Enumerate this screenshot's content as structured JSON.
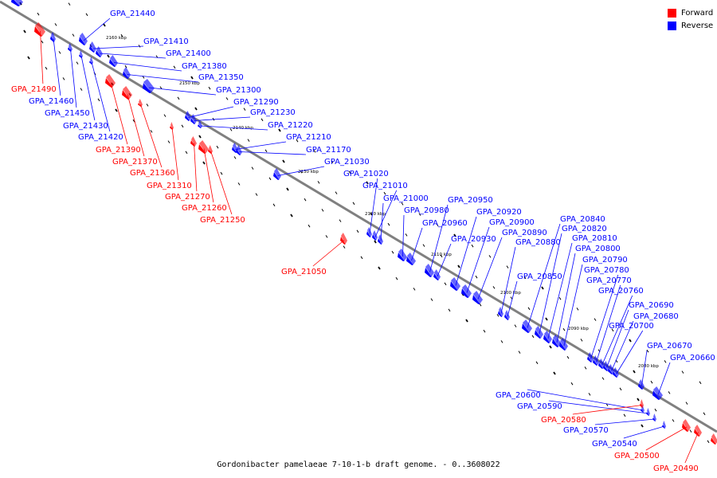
{
  "colors": {
    "forward": "#ff0000",
    "reverse": "#0000ff",
    "backbone": "#808080"
  },
  "legend": {
    "forward": "Forward",
    "reverse": "Reverse"
  },
  "caption": "Gordonibacter pamelaeae 7-10-1-b draft genome. - 0..3608022",
  "ticks": [
    "2160 kbp",
    "2150 kbp",
    "2140 kbp",
    "2130 kbp",
    "2120 kbp",
    "2110 kbp",
    "2100 kbp",
    "2090 kbp",
    "2080 kbp"
  ],
  "genes": [
    {
      "id": "GPA_21440",
      "strand": "reverse"
    },
    {
      "id": "GPA_21410",
      "strand": "reverse"
    },
    {
      "id": "GPA_21400",
      "strand": "reverse"
    },
    {
      "id": "GPA_21380",
      "strand": "reverse"
    },
    {
      "id": "GPA_21350",
      "strand": "reverse"
    },
    {
      "id": "GPA_21300",
      "strand": "reverse"
    },
    {
      "id": "GPA_21290",
      "strand": "reverse"
    },
    {
      "id": "GPA_21230",
      "strand": "reverse"
    },
    {
      "id": "GPA_21220",
      "strand": "reverse"
    },
    {
      "id": "GPA_21210",
      "strand": "reverse"
    },
    {
      "id": "GPA_21170",
      "strand": "reverse"
    },
    {
      "id": "GPA_21030",
      "strand": "reverse"
    },
    {
      "id": "GPA_21020",
      "strand": "reverse"
    },
    {
      "id": "GPA_21010",
      "strand": "reverse"
    },
    {
      "id": "GPA_21000",
      "strand": "reverse"
    },
    {
      "id": "GPA_20980",
      "strand": "reverse"
    },
    {
      "id": "GPA_20960",
      "strand": "reverse"
    },
    {
      "id": "GPA_20950",
      "strand": "reverse"
    },
    {
      "id": "GPA_20930",
      "strand": "reverse"
    },
    {
      "id": "GPA_20920",
      "strand": "reverse"
    },
    {
      "id": "GPA_20900",
      "strand": "reverse"
    },
    {
      "id": "GPA_20890",
      "strand": "reverse"
    },
    {
      "id": "GPA_20880",
      "strand": "reverse"
    },
    {
      "id": "GPA_20850",
      "strand": "reverse"
    },
    {
      "id": "GPA_20840",
      "strand": "reverse"
    },
    {
      "id": "GPA_20820",
      "strand": "reverse"
    },
    {
      "id": "GPA_20810",
      "strand": "reverse"
    },
    {
      "id": "GPA_20800",
      "strand": "reverse"
    },
    {
      "id": "GPA_20790",
      "strand": "reverse"
    },
    {
      "id": "GPA_20780",
      "strand": "reverse"
    },
    {
      "id": "GPA_20770",
      "strand": "reverse"
    },
    {
      "id": "GPA_20760",
      "strand": "reverse"
    },
    {
      "id": "GPA_20690",
      "strand": "reverse"
    },
    {
      "id": "GPA_20680",
      "strand": "reverse"
    },
    {
      "id": "GPA_20700",
      "strand": "reverse"
    },
    {
      "id": "GPA_20670",
      "strand": "reverse"
    },
    {
      "id": "GPA_20660",
      "strand": "reverse"
    },
    {
      "id": "GPA_21490",
      "strand": "forward"
    },
    {
      "id": "GPA_21460",
      "strand": "reverse"
    },
    {
      "id": "GPA_21450",
      "strand": "reverse"
    },
    {
      "id": "GPA_21430",
      "strand": "reverse"
    },
    {
      "id": "GPA_21420",
      "strand": "reverse"
    },
    {
      "id": "GPA_21390",
      "strand": "forward"
    },
    {
      "id": "GPA_21370",
      "strand": "forward"
    },
    {
      "id": "GPA_21360",
      "strand": "forward"
    },
    {
      "id": "GPA_21310",
      "strand": "forward"
    },
    {
      "id": "GPA_21270",
      "strand": "forward"
    },
    {
      "id": "GPA_21260",
      "strand": "forward"
    },
    {
      "id": "GPA_21250",
      "strand": "forward"
    },
    {
      "id": "GPA_21050",
      "strand": "forward"
    },
    {
      "id": "GPA_20600",
      "strand": "reverse"
    },
    {
      "id": "GPA_20590",
      "strand": "reverse"
    },
    {
      "id": "GPA_20580",
      "strand": "forward"
    },
    {
      "id": "GPA_20570",
      "strand": "reverse"
    },
    {
      "id": "GPA_20540",
      "strand": "reverse"
    },
    {
      "id": "GPA_20500",
      "strand": "forward"
    },
    {
      "id": "GPA_20490",
      "strand": "forward"
    }
  ]
}
